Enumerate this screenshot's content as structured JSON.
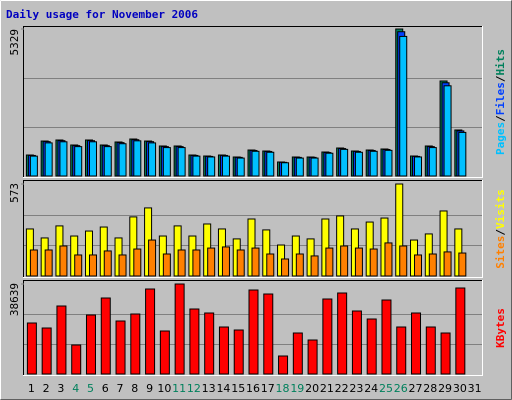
{
  "chart_data": [
    {
      "type": "bar",
      "title": "Daily usage for November 2006",
      "ylim": [
        0,
        5329
      ],
      "yticks": [
        5329
      ],
      "grid": true,
      "separator": "/",
      "series": [
        {
          "name": "Pages",
          "color": "#00c0ff",
          "values": [
            720,
            1200,
            1240,
            1065,
            1240,
            1065,
            1170,
            1275,
            1200,
            1030,
            1030,
            720,
            690,
            720,
            650,
            895,
            860,
            480,
            650,
            650,
            825,
            965,
            860,
            895,
            930,
            5060,
            690,
            1030,
            3270,
            1580,
            null
          ]
        },
        {
          "name": "Files",
          "color": "#0040ff",
          "values": [
            745,
            1245,
            1280,
            1100,
            1280,
            1100,
            1210,
            1315,
            1245,
            1065,
            1065,
            745,
            710,
            745,
            675,
            925,
            890,
            495,
            675,
            675,
            850,
            995,
            890,
            925,
            960,
            5230,
            710,
            1065,
            3380,
            1635,
            null
          ]
        },
        {
          "name": "Hits",
          "color": "#00805c",
          "values": [
            761,
            1268,
            1305,
            1124,
            1305,
            1124,
            1233,
            1341,
            1268,
            1088,
            1088,
            761,
            725,
            761,
            689,
            942,
            906,
            508,
            689,
            689,
            870,
            1015,
            906,
            942,
            979,
            5329,
            725,
            1088,
            3444,
            1668,
            null
          ]
        }
      ]
    },
    {
      "type": "bar",
      "ylim": [
        0,
        573
      ],
      "yticks": [
        573
      ],
      "grid": true,
      "separator": "/",
      "series": [
        {
          "name": "Sites",
          "color": "#ff8000",
          "values": [
            162,
            162,
            187,
            131,
            131,
            156,
            131,
            168,
            224,
            137,
            162,
            162,
            174,
            181,
            162,
            174,
            137,
            106,
            137,
            125,
            174,
            187,
            174,
            168,
            206,
            187,
            131,
            137,
            150,
            143,
            null
          ]
        },
        {
          "name": "Visits",
          "color": "#ffff00",
          "values": [
            293,
            237,
            312,
            249,
            280,
            305,
            237,
            368,
            424,
            249,
            312,
            249,
            324,
            293,
            231,
            355,
            287,
            193,
            249,
            231,
            355,
            374,
            293,
            336,
            361,
            573,
            224,
            262,
            405,
            293,
            null
          ]
        }
      ]
    },
    {
      "type": "bar",
      "ylim": [
        0,
        38639
      ],
      "yticks": [
        38639
      ],
      "grid": true,
      "categories": [
        "1",
        "2",
        "3",
        "4",
        "5",
        "6",
        "7",
        "8",
        "9",
        "10",
        "11",
        "12",
        "13",
        "14",
        "15",
        "16",
        "17",
        "18",
        "19",
        "20",
        "21",
        "22",
        "23",
        "24",
        "25",
        "26",
        "27",
        "28",
        "29",
        "30",
        "31"
      ],
      "category_colors": [
        "#000000",
        "#000000",
        "#000000",
        "#00805c",
        "#00805c",
        "#000000",
        "#000000",
        "#000000",
        "#000000",
        "#000000",
        "#00805c",
        "#00805c",
        "#000000",
        "#000000",
        "#000000",
        "#000000",
        "#000000",
        "#00805c",
        "#00805c",
        "#000000",
        "#000000",
        "#000000",
        "#000000",
        "#000000",
        "#00805c",
        "#00805c",
        "#000000",
        "#000000",
        "#000000",
        "#000000",
        "#000000"
      ],
      "series": [
        {
          "name": "KBytes",
          "color": "#ff0000",
          "values": [
            21895,
            19748,
            29192,
            12450,
            25329,
            32627,
            22753,
            25758,
            36491,
            18460,
            38639,
            27905,
            26187,
            20177,
            18889,
            36061,
            34344,
            7727,
            17601,
            14596,
            32198,
            34773,
            27046,
            23612,
            31768,
            20177,
            26187,
            20177,
            17601,
            36920,
            null
          ]
        }
      ]
    }
  ]
}
